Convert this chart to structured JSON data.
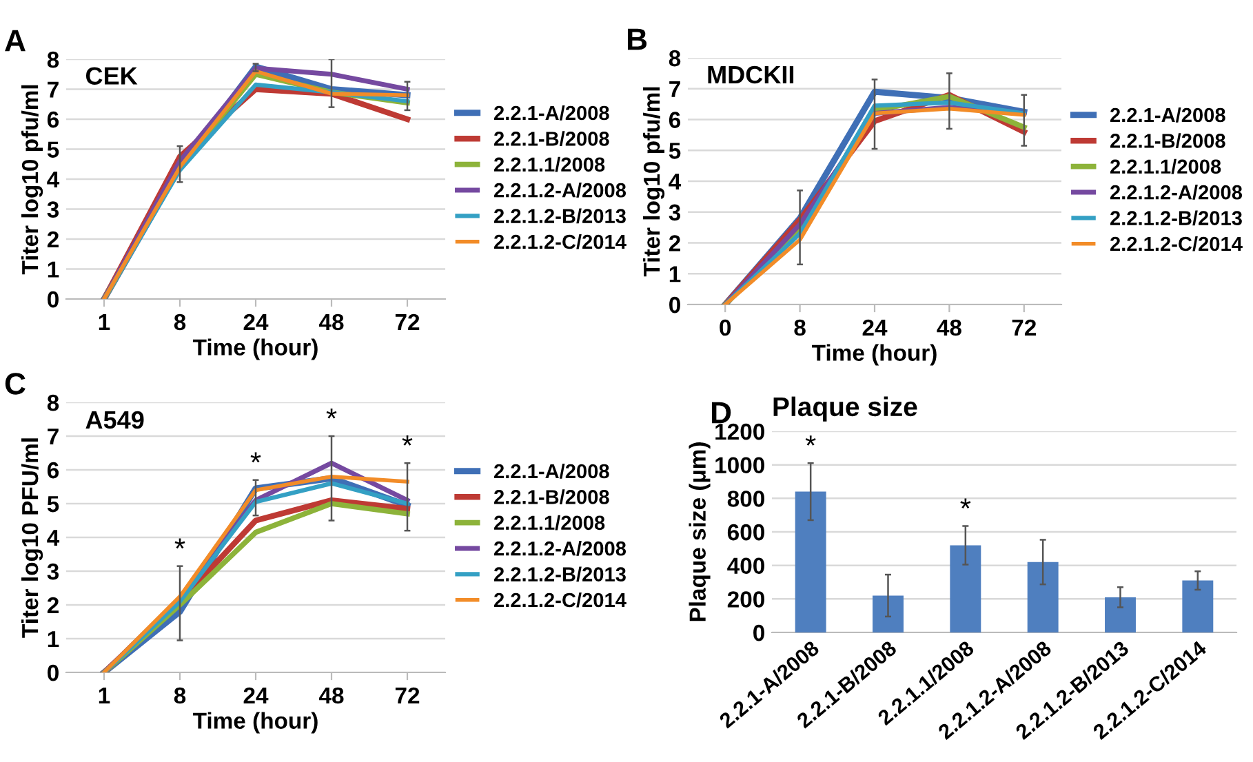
{
  "chart_data": [
    {
      "type": "line",
      "title": "CEK",
      "xlabel": "Time (hour)",
      "ylabel": "Titer log10 pfu/ml",
      "categories": [
        "1",
        "8",
        "24",
        "48",
        "72"
      ],
      "ylim": [
        0,
        8
      ],
      "yticks": [
        0,
        1,
        2,
        3,
        4,
        5,
        6,
        7,
        8
      ],
      "grid": "y",
      "legend": "right",
      "marker": "none",
      "line_style": "solid",
      "annotations": [
        "A"
      ],
      "series": [
        {
          "name": "2.2.1-A/2008",
          "color": "#3f6fb6",
          "values": [
            0,
            4.4,
            7.75,
            7.0,
            6.8
          ],
          "errors": [
            null,
            [
              3.9,
              5.1
            ],
            [
              7.6,
              7.85
            ],
            [
              6.4,
              8.0
            ],
            [
              6.3,
              7.25
            ]
          ]
        },
        {
          "name": "2.2.1-B/2008",
          "color": "#be3a34",
          "values": [
            0,
            4.75,
            7.0,
            6.85,
            6.0
          ]
        },
        {
          "name": "2.2.1.1/2008",
          "color": "#8db33a",
          "values": [
            0,
            4.4,
            7.5,
            6.9,
            6.55
          ]
        },
        {
          "name": "2.2.1.2-A/2008",
          "color": "#7549a0",
          "values": [
            0,
            4.6,
            7.7,
            7.5,
            7.0
          ]
        },
        {
          "name": "2.2.1.2-B/2013",
          "color": "#34a0c4",
          "values": [
            0,
            4.3,
            7.15,
            6.9,
            6.6
          ]
        },
        {
          "name": "2.2.1.2-C/2014",
          "color": "#f28c28",
          "values": [
            0,
            4.4,
            7.6,
            6.85,
            6.8
          ]
        }
      ]
    },
    {
      "type": "line",
      "title": "MDCKII",
      "xlabel": "Time (hour)",
      "ylabel": "Titer log10 pfu/ml",
      "categories": [
        "0",
        "8",
        "24",
        "48",
        "72"
      ],
      "ylim": [
        0,
        8
      ],
      "yticks": [
        0,
        1,
        2,
        3,
        4,
        5,
        6,
        7,
        8
      ],
      "grid": "y",
      "legend": "right",
      "marker": "none",
      "line_style": "solid",
      "annotations": [
        "B"
      ],
      "series": [
        {
          "name": "2.2.1-A/2008",
          "color": "#3f6fb6",
          "values": [
            0,
            2.8,
            6.9,
            6.7,
            6.25
          ],
          "errors": [
            null,
            [
              1.3,
              3.7
            ],
            [
              5.05,
              7.3
            ],
            [
              5.7,
              7.5
            ],
            [
              5.15,
              6.8
            ]
          ]
        },
        {
          "name": "2.2.1-B/2008",
          "color": "#be3a34",
          "values": [
            0,
            2.75,
            5.95,
            6.8,
            5.6
          ]
        },
        {
          "name": "2.2.1.1/2008",
          "color": "#8db33a",
          "values": [
            0,
            2.4,
            6.3,
            6.75,
            5.75
          ]
        },
        {
          "name": "2.2.1.2-A/2008",
          "color": "#7549a0",
          "values": [
            0,
            2.6,
            6.2,
            6.4,
            6.2
          ]
        },
        {
          "name": "2.2.1.2-B/2013",
          "color": "#34a0c4",
          "values": [
            0,
            2.3,
            6.45,
            6.55,
            6.2
          ]
        },
        {
          "name": "2.2.1.2-C/2014",
          "color": "#f28c28",
          "values": [
            0,
            2.1,
            6.2,
            6.35,
            6.15
          ]
        }
      ]
    },
    {
      "type": "line",
      "title": "A549",
      "xlabel": "Time (hour)",
      "ylabel": "Titer log10 PFU/ml",
      "categories": [
        "1",
        "8",
        "24",
        "48",
        "72"
      ],
      "ylim": [
        0,
        8
      ],
      "yticks": [
        0,
        1,
        2,
        3,
        4,
        5,
        6,
        7,
        8
      ],
      "grid": "y",
      "legend": "right",
      "marker": "none",
      "line_style": "solid",
      "annotations": [
        "C",
        {
          "text": "*",
          "x": "8",
          "y": 3.15
        },
        {
          "text": "*",
          "x": "24",
          "y": 5.7
        },
        {
          "text": "*",
          "x": "48",
          "y": 7.0
        },
        {
          "text": "*",
          "x": "72",
          "y": 6.2
        }
      ],
      "series": [
        {
          "name": "2.2.1-A/2008",
          "color": "#3f6fb6",
          "values": [
            0,
            1.8,
            5.45,
            5.75,
            4.95
          ],
          "errors": [
            null,
            [
              0.95,
              3.15
            ],
            [
              4.65,
              5.7
            ],
            [
              4.5,
              7.0
            ],
            [
              4.2,
              6.2
            ]
          ]
        },
        {
          "name": "2.2.1-B/2008",
          "color": "#be3a34",
          "values": [
            0,
            2.1,
            4.5,
            5.1,
            4.85
          ]
        },
        {
          "name": "2.2.1.1/2008",
          "color": "#8db33a",
          "values": [
            0,
            2.0,
            4.15,
            5.0,
            4.7
          ]
        },
        {
          "name": "2.2.1.2-A/2008",
          "color": "#7549a0",
          "values": [
            0,
            2.2,
            5.1,
            6.2,
            5.1
          ]
        },
        {
          "name": "2.2.1.2-B/2013",
          "color": "#34a0c4",
          "values": [
            0,
            2.1,
            5.05,
            5.6,
            5.0
          ]
        },
        {
          "name": "2.2.1.2-C/2014",
          "color": "#f28c28",
          "values": [
            0,
            2.25,
            5.4,
            5.8,
            5.65
          ]
        }
      ]
    },
    {
      "type": "bar",
      "title": "Plaque size",
      "ylabel": "Plaque size (μm)",
      "categories": [
        "2.2.1-A/2008",
        "2.2.1-B/2008",
        "2.2.1.1/2008",
        "2.2.1.2-A/2008",
        "2.2.1.2-B/2013",
        "2.2.1.2-C/2014"
      ],
      "ylim": [
        0,
        1200
      ],
      "yticks": [
        0,
        200,
        400,
        600,
        800,
        1000,
        1200
      ],
      "grid": "y",
      "annotations": [
        "D",
        {
          "text": "*",
          "x": "2.2.1-A/2008",
          "y": 1010
        },
        {
          "text": "*",
          "x": "2.2.1.1/2008",
          "y": 635
        }
      ],
      "series": [
        {
          "color": "#4f7fbf",
          "values": [
            840,
            220,
            520,
            420,
            210,
            310
          ],
          "errors": [
            170,
            125,
            115,
            133,
            60,
            55
          ]
        }
      ]
    }
  ]
}
